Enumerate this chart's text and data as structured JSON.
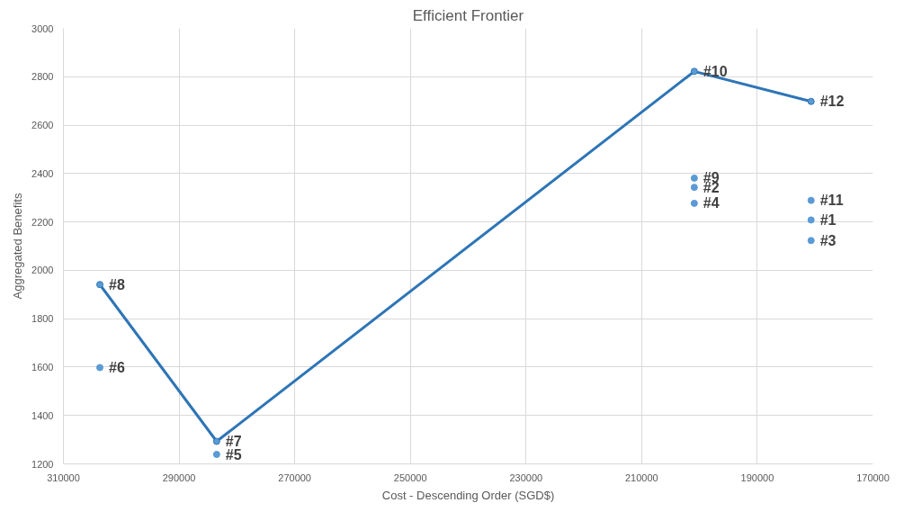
{
  "chart_data": {
    "type": "scatter",
    "title": "Efficient Frontier",
    "xlabel": "Cost - Descending Order (SGD$)",
    "ylabel": "Aggregated Benefits",
    "xlim": [
      310000,
      170000
    ],
    "xticks": [
      310000,
      290000,
      270000,
      250000,
      230000,
      210000,
      190000,
      170000
    ],
    "ylim": [
      1200,
      3000
    ],
    "yticks": [
      1200,
      1400,
      1600,
      1800,
      2000,
      2200,
      2400,
      2600,
      2800,
      3000
    ],
    "grid": true,
    "marker": "circle",
    "series": [
      {
        "type": "line",
        "color": "#2e75b6",
        "x": [
          303700,
          283500,
          200900,
          180700
        ],
        "values": [
          1941,
          1293,
          2822,
          2698
        ]
      },
      {
        "type": "scatter",
        "color": "#5b9bd5",
        "x": [
          303700,
          283500,
          200900,
          200900,
          200900,
          180700,
          180700,
          180700
        ],
        "values": [
          1598,
          1239,
          2381,
          2343,
          2277,
          2289,
          2208,
          2123
        ]
      }
    ],
    "annotations": [
      {
        "text": "#8",
        "x": 303700,
        "y": 1941
      },
      {
        "text": "#6",
        "x": 303700,
        "y": 1598
      },
      {
        "text": "#7",
        "x": 283500,
        "y": 1293
      },
      {
        "text": "#5",
        "x": 283500,
        "y": 1239
      },
      {
        "text": "#10",
        "x": 200900,
        "y": 2822
      },
      {
        "text": "#9",
        "x": 200900,
        "y": 2381
      },
      {
        "text": "#2",
        "x": 200900,
        "y": 2343
      },
      {
        "text": "#4",
        "x": 200900,
        "y": 2277
      },
      {
        "text": "#12",
        "x": 180700,
        "y": 2698
      },
      {
        "text": "#11",
        "x": 180700,
        "y": 2289
      },
      {
        "text": "#1",
        "x": 180700,
        "y": 2208
      },
      {
        "text": "#3",
        "x": 180700,
        "y": 2123
      }
    ]
  }
}
